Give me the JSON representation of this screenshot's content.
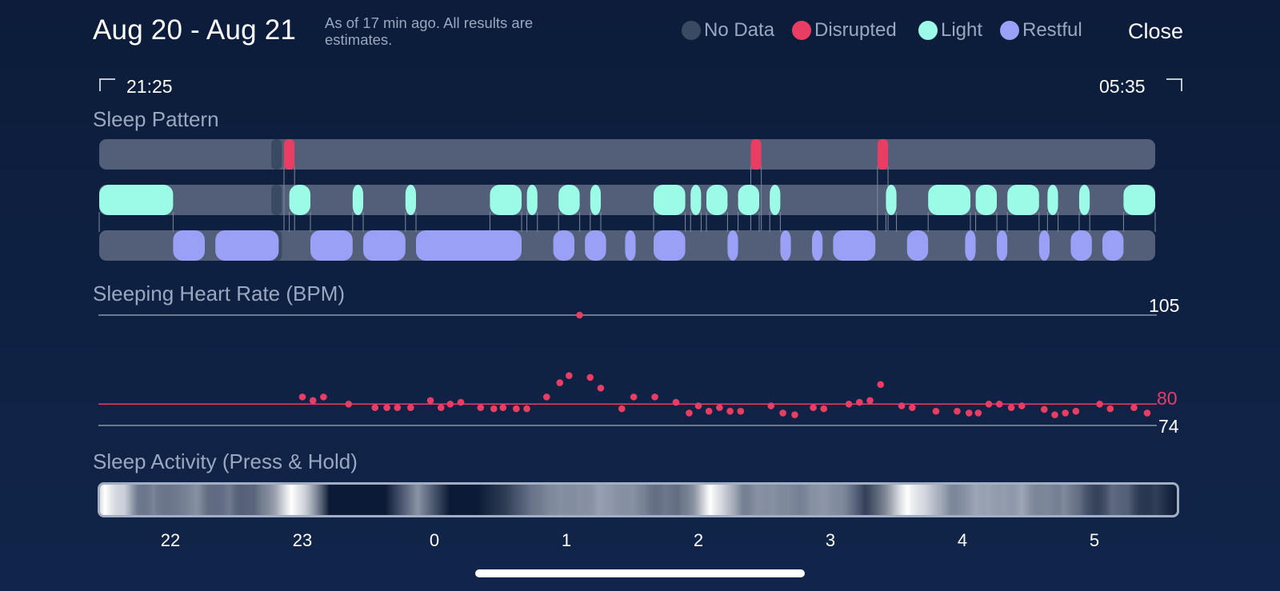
{
  "header": {
    "date_range": "Aug 20 - Aug 21",
    "subtitle": "As of 17 min ago. All results are estimates.",
    "close_label": "Close"
  },
  "legend": [
    {
      "label": "No Data",
      "color": "#3b4a63"
    },
    {
      "label": "Disrupted",
      "color": "#ea3d63"
    },
    {
      "label": "Light",
      "color": "#9cfbe6"
    },
    {
      "label": "Restful",
      "color": "#9aa0f5"
    }
  ],
  "time_range": {
    "start": "21:25",
    "end": "05:35"
  },
  "sleep_pattern": {
    "title": "Sleep Pattern",
    "track_color": "#535f78",
    "no_data": [
      [
        1.63,
        1.73
      ]
    ],
    "disrupted": [
      [
        1.75,
        1.85
      ],
      [
        6.17,
        6.27
      ],
      [
        7.37,
        7.47
      ]
    ],
    "light": [
      [
        0.0,
        0.7
      ],
      [
        1.8,
        2.0
      ],
      [
        2.4,
        2.5
      ],
      [
        2.9,
        3.0
      ],
      [
        3.7,
        4.0
      ],
      [
        4.05,
        4.15
      ],
      [
        4.35,
        4.55
      ],
      [
        4.65,
        4.75
      ],
      [
        5.25,
        5.55
      ],
      [
        5.6,
        5.7
      ],
      [
        5.75,
        5.95
      ],
      [
        6.05,
        6.25
      ],
      [
        6.35,
        6.45
      ],
      [
        7.45,
        7.55
      ],
      [
        7.85,
        8.25
      ],
      [
        8.3,
        8.5
      ],
      [
        8.6,
        8.9
      ],
      [
        8.98,
        9.08
      ],
      [
        9.28,
        9.38
      ],
      [
        9.7,
        10.0
      ]
    ],
    "restful": [
      [
        0.7,
        1.0
      ],
      [
        1.1,
        1.7
      ],
      [
        2.0,
        2.4
      ],
      [
        2.5,
        2.9
      ],
      [
        3.0,
        4.0
      ],
      [
        4.3,
        4.5
      ],
      [
        4.6,
        4.8
      ],
      [
        4.98,
        5.08
      ],
      [
        5.25,
        5.55
      ],
      [
        5.95,
        6.05
      ],
      [
        6.45,
        6.55
      ],
      [
        6.75,
        6.85
      ],
      [
        6.95,
        7.35
      ],
      [
        7.65,
        7.85
      ],
      [
        8.2,
        8.3
      ],
      [
        8.5,
        8.6
      ],
      [
        8.9,
        9.0
      ],
      [
        9.2,
        9.4
      ],
      [
        9.5,
        9.7
      ]
    ]
  },
  "heart_rate": {
    "title": "Sleeping Heart Rate (BPM)",
    "max_label": "105",
    "avg_label": "80",
    "min_label": "74",
    "ymin": 74,
    "ymax": 105,
    "avg": 80,
    "point_color": "#ea3d63",
    "points": [
      [
        23.0,
        82
      ],
      [
        23.08,
        81
      ],
      [
        23.16,
        82
      ],
      [
        23.35,
        80
      ],
      [
        23.55,
        79
      ],
      [
        23.64,
        79
      ],
      [
        23.72,
        79
      ],
      [
        23.82,
        79
      ],
      [
        23.97,
        81
      ],
      [
        24.05,
        79
      ],
      [
        24.12,
        80
      ],
      [
        24.2,
        80.5
      ],
      [
        24.35,
        79
      ],
      [
        24.45,
        78.7
      ],
      [
        24.52,
        79
      ],
      [
        24.62,
        78.7
      ],
      [
        24.7,
        78.7
      ],
      [
        24.85,
        82
      ],
      [
        24.95,
        86
      ],
      [
        25.02,
        88
      ],
      [
        25.1,
        105
      ],
      [
        25.18,
        87.5
      ],
      [
        25.26,
        84.5
      ],
      [
        25.42,
        78.7
      ],
      [
        25.51,
        82
      ],
      [
        25.67,
        82
      ],
      [
        25.83,
        80.5
      ],
      [
        25.93,
        77.5
      ],
      [
        26.0,
        79.5
      ],
      [
        26.08,
        78
      ],
      [
        26.16,
        79
      ],
      [
        26.24,
        78
      ],
      [
        26.32,
        78
      ],
      [
        26.55,
        79.5
      ],
      [
        26.64,
        77.5
      ],
      [
        26.73,
        77
      ],
      [
        26.87,
        79
      ],
      [
        26.95,
        78.7
      ],
      [
        27.14,
        80
      ],
      [
        27.22,
        80.5
      ],
      [
        27.3,
        81
      ],
      [
        27.38,
        85.5
      ],
      [
        27.54,
        79.5
      ],
      [
        27.62,
        79
      ],
      [
        27.8,
        78
      ],
      [
        27.96,
        78
      ],
      [
        28.05,
        77.5
      ],
      [
        28.12,
        77.5
      ],
      [
        28.2,
        80
      ],
      [
        28.28,
        80
      ],
      [
        28.37,
        79
      ],
      [
        28.45,
        79.5
      ],
      [
        28.62,
        78.5
      ],
      [
        28.7,
        77
      ],
      [
        28.78,
        77.5
      ],
      [
        28.86,
        78
      ],
      [
        29.04,
        80
      ],
      [
        29.12,
        78.7
      ],
      [
        29.3,
        79
      ],
      [
        29.4,
        77.5
      ]
    ]
  },
  "sleep_activity": {
    "title": "Sleep Activity (Press & Hold)",
    "bands": [
      [
        0.5,
        0.9,
        3
      ],
      [
        2.2,
        0.8,
        3
      ],
      [
        5.0,
        0.5,
        2
      ],
      [
        7.0,
        0.3,
        3
      ],
      [
        9.0,
        0.6,
        4
      ],
      [
        12.0,
        0.4,
        2
      ],
      [
        14.0,
        0.3,
        2.5
      ],
      [
        15.0,
        0.25,
        2.5
      ],
      [
        17.8,
        1.0,
        3.5
      ],
      [
        18.8,
        0.55,
        2.5
      ],
      [
        29.5,
        0.65,
        3
      ],
      [
        40.0,
        0.35,
        5
      ],
      [
        41.7,
        0.3,
        4
      ],
      [
        42.7,
        0.3,
        3
      ],
      [
        44.5,
        0.3,
        3.5
      ],
      [
        46.3,
        0.55,
        4
      ],
      [
        47.5,
        0.35,
        3.5
      ],
      [
        49.5,
        0.3,
        2
      ],
      [
        50.5,
        0.4,
        5
      ],
      [
        52.5,
        0.3,
        3
      ],
      [
        54.0,
        0.25,
        2
      ],
      [
        56.7,
        0.9,
        3
      ],
      [
        57.7,
        0.5,
        2.5
      ],
      [
        59.0,
        0.3,
        3
      ],
      [
        61.0,
        0.5,
        4
      ],
      [
        62.5,
        0.3,
        3
      ],
      [
        64.0,
        0.25,
        4
      ],
      [
        66.0,
        0.35,
        5
      ],
      [
        67.2,
        0.4,
        4
      ],
      [
        69.0,
        0.4,
        4
      ],
      [
        75.0,
        1.0,
        4
      ],
      [
        76.5,
        0.6,
        3
      ],
      [
        78.0,
        0.35,
        3
      ],
      [
        79.5,
        0.3,
        4
      ],
      [
        81.3,
        0.6,
        3.5
      ],
      [
        82.5,
        0.4,
        3
      ],
      [
        84.0,
        0.3,
        3
      ],
      [
        85.6,
        0.7,
        3.5
      ],
      [
        88.0,
        0.3,
        3
      ],
      [
        89.5,
        0.5,
        3
      ],
      [
        91.0,
        0.25,
        2
      ],
      [
        94.0,
        0.4,
        2.5
      ],
      [
        95.5,
        0.25,
        2
      ],
      [
        98.0,
        0.2,
        2
      ]
    ],
    "x_labels": [
      "22",
      "23",
      "0",
      "1",
      "2",
      "3",
      "4",
      "5"
    ],
    "x_label_hours": [
      22,
      23,
      24,
      25,
      26,
      27,
      28,
      29
    ]
  }
}
